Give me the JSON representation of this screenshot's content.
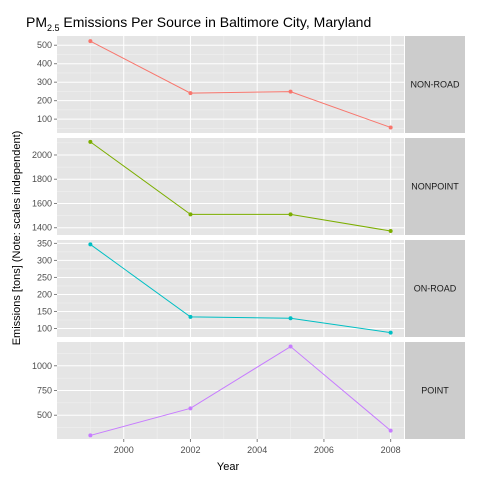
{
  "chart_data": {
    "type": "line",
    "title_main": "PM",
    "title_subscript": "2.5",
    "title_rest": " Emissions Per Source in Baltimore City, Maryland",
    "xlabel": "Year",
    "ylabel": "Emissions [tons] (Note: scales independent)",
    "x_ticks": [
      2000,
      2002,
      2004,
      2006,
      2008
    ],
    "xlim": [
      1998.0,
      2008.4
    ],
    "x": [
      1999,
      2002,
      2005,
      2008
    ],
    "grid": true,
    "facet_strip_position": "right",
    "series": [
      {
        "name": "NON-ROAD",
        "color": "#f8766d",
        "values": [
          522,
          241,
          249,
          55
        ],
        "ylim": [
          25,
          550
        ],
        "y_ticks": [
          100,
          200,
          300,
          400,
          500
        ]
      },
      {
        "name": "NONPOINT",
        "color": "#7cae00",
        "values": [
          2108,
          1510,
          1510,
          1373
        ],
        "ylim": [
          1340,
          2140
        ],
        "y_ticks": [
          1400,
          1600,
          1800,
          2000
        ]
      },
      {
        "name": "ON-ROAD",
        "color": "#00bfc4",
        "values": [
          347,
          134,
          130,
          88
        ],
        "ylim": [
          75,
          360
        ],
        "y_ticks": [
          100,
          150,
          200,
          250,
          300,
          350
        ]
      },
      {
        "name": "POINT",
        "color": "#c77cff",
        "values": [
          296,
          570,
          1194,
          345
        ],
        "ylim": [
          260,
          1240
        ],
        "y_ticks": [
          500,
          750,
          1000
        ]
      }
    ]
  }
}
